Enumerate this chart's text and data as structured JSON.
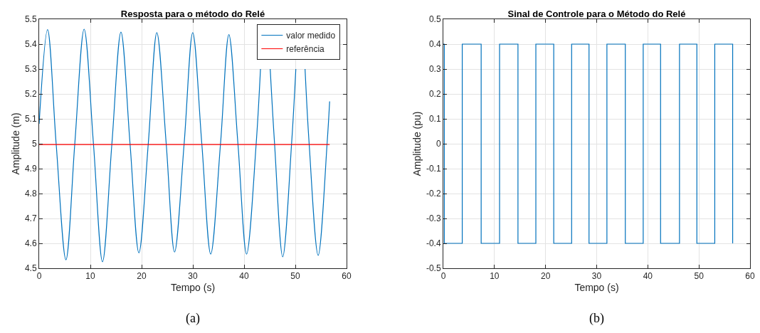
{
  "chart_data": [
    {
      "type": "line",
      "title": "Resposta para o método do Relé",
      "xlabel": "Tempo (s)",
      "ylabel": "Amplitude (m)",
      "xlim": [
        0,
        60
      ],
      "ylim": [
        4.5,
        5.5
      ],
      "xticks": [
        0,
        10,
        20,
        30,
        40,
        50,
        60
      ],
      "yticks": [
        4.5,
        4.6,
        4.7,
        4.8,
        4.9,
        5,
        5.1,
        5.2,
        5.3,
        5.4,
        5.5
      ],
      "grid": true,
      "legend": "top right",
      "annotations": [
        "(a)"
      ],
      "series": [
        {
          "name": "valor medido",
          "color": "#0072bd",
          "x": [
            0,
            1.64,
            3.32,
            5.23,
            6.96,
            8.78,
            10.6,
            12.37,
            14.2,
            15.97,
            17.74,
            19.47,
            21.3,
            22.97,
            24.8,
            26.43,
            28.3,
            29.98,
            31.75,
            33.49,
            35.4,
            37.03,
            38.8,
            40.49,
            42.36,
            43.2,
            44.0,
            45.1,
            45.95,
            47.54,
            49.27,
            50.1,
            50.95,
            51.9,
            52.7,
            54.46,
            56.2,
            56.7
          ],
          "values": [
            5.08,
            5.458,
            5.0,
            4.534,
            5.0,
            5.46,
            5.0,
            4.526,
            5.0,
            5.448,
            5.0,
            4.562,
            5.0,
            5.446,
            5.0,
            4.565,
            5.0,
            5.446,
            5.0,
            4.557,
            5.0,
            5.438,
            5.0,
            4.557,
            5.0,
            5.3,
            null,
            5.3,
            5.0,
            4.546,
            5.0,
            5.3,
            null,
            5.3,
            5.0,
            4.552,
            5.0,
            5.17
          ]
        },
        {
          "name": "referência",
          "color": "#ff0000",
          "x": [
            0,
            56.7
          ],
          "values": [
            4.997,
            4.997
          ]
        }
      ]
    },
    {
      "type": "step",
      "title": "Sinal de Controle para o Método do Relé",
      "xlabel": "Tempo (s)",
      "ylabel": "Amplitude (pu)",
      "xlim": [
        0,
        60
      ],
      "ylim": [
        -0.5,
        0.5
      ],
      "xticks": [
        0,
        10,
        20,
        30,
        40,
        50,
        60
      ],
      "yticks": [
        -0.5,
        -0.4,
        -0.3,
        -0.2,
        -0.1,
        0,
        0.1,
        0.2,
        0.3,
        0.4,
        0.5
      ],
      "grid": true,
      "annotations": [
        "(b)"
      ],
      "series": [
        {
          "color": "#0072bd",
          "x": [
            0,
            0.2,
            3.7,
            7.4,
            11.0,
            14.6,
            18.1,
            21.6,
            25.1,
            28.5,
            32.0,
            35.6,
            39.1,
            42.5,
            46.2,
            49.6,
            53.1,
            56.6
          ],
          "values": [
            0.4,
            -0.4,
            0.4,
            -0.4,
            0.4,
            -0.4,
            0.4,
            -0.4,
            0.4,
            -0.4,
            0.4,
            -0.4,
            0.4,
            -0.4,
            0.4,
            -0.4,
            0.4,
            -0.4
          ]
        }
      ]
    }
  ]
}
